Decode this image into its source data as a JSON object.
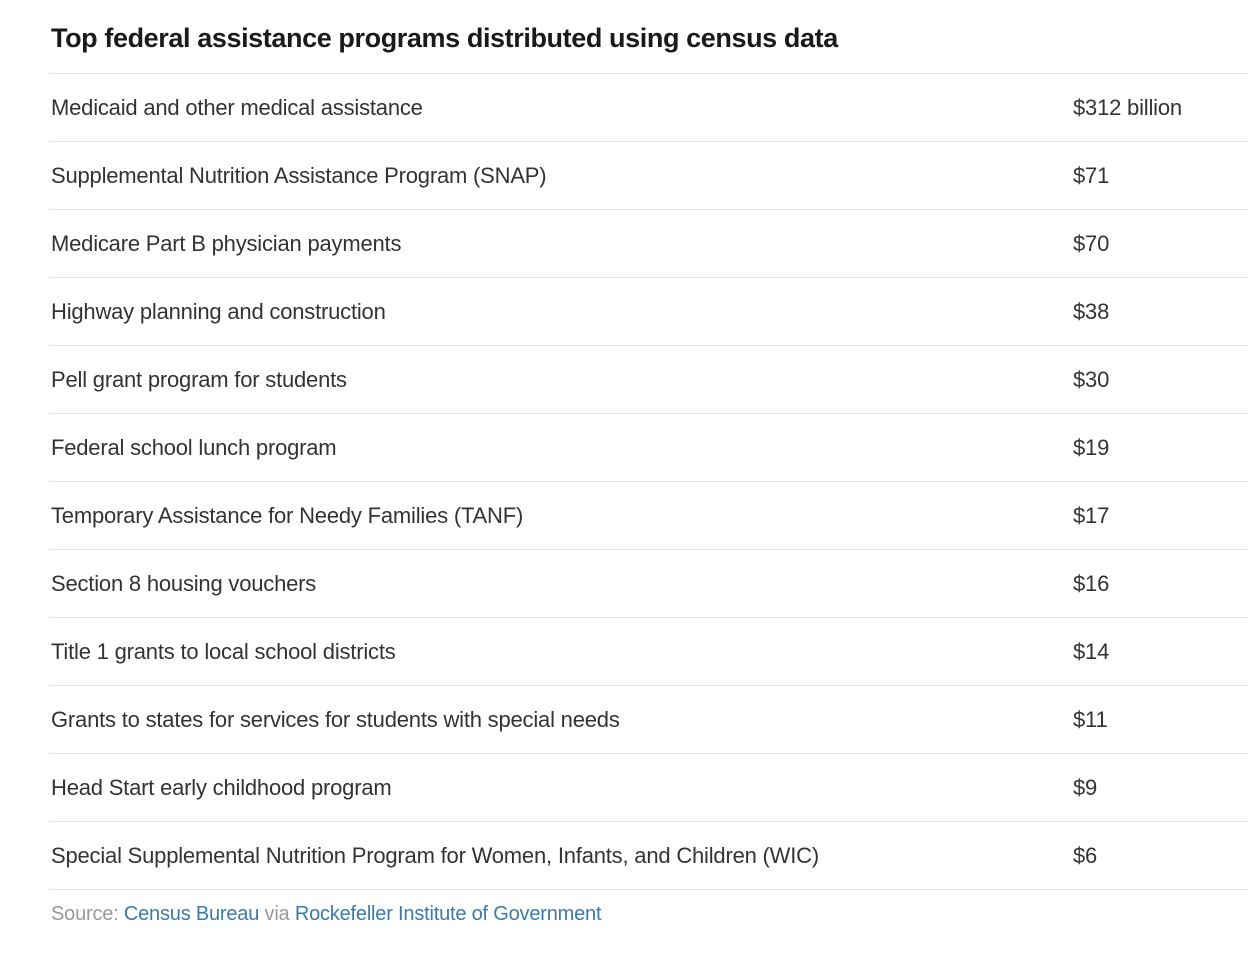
{
  "chart_data": {
    "type": "table",
    "title": "Top federal assistance programs distributed using census data",
    "unit": "billions of U.S. dollars",
    "rows": [
      {
        "program": "Medicaid and other medical assistance",
        "amount_display": "$312 billion",
        "amount_billions": 312
      },
      {
        "program": "Supplemental Nutrition Assistance Program (SNAP)",
        "amount_display": "$71",
        "amount_billions": 71
      },
      {
        "program": "Medicare Part B physician payments",
        "amount_display": "$70",
        "amount_billions": 70
      },
      {
        "program": "Highway planning and construction",
        "amount_display": "$38",
        "amount_billions": 38
      },
      {
        "program": "Pell grant program for students",
        "amount_display": "$30",
        "amount_billions": 30
      },
      {
        "program": "Federal school lunch program",
        "amount_display": "$19",
        "amount_billions": 19
      },
      {
        "program": "Temporary Assistance for Needy Families (TANF)",
        "amount_display": "$17",
        "amount_billions": 17
      },
      {
        "program": "Section 8 housing vouchers",
        "amount_display": "$16",
        "amount_billions": 16
      },
      {
        "program": "Title 1 grants to local school districts",
        "amount_display": "$14",
        "amount_billions": 14
      },
      {
        "program": "Grants to states for services for students with special needs",
        "amount_display": "$11",
        "amount_billions": 11
      },
      {
        "program": "Head Start early childhood program",
        "amount_display": "$9",
        "amount_billions": 9
      },
      {
        "program": "Special Supplemental Nutrition Program for Women, Infants, and Children (WIC)",
        "amount_display": "$6",
        "amount_billions": 6
      }
    ]
  },
  "source": {
    "prefix": "Source: ",
    "census_bureau": "Census Bureau",
    "via": " via ",
    "rockefeller": "Rockefeller Institute of Government"
  },
  "colors": {
    "title_text": "#1a1a1a",
    "row_text": "#333333",
    "divider": "#e6e6e6",
    "muted_text": "#999999",
    "link_blue": "#3b7aa9"
  }
}
